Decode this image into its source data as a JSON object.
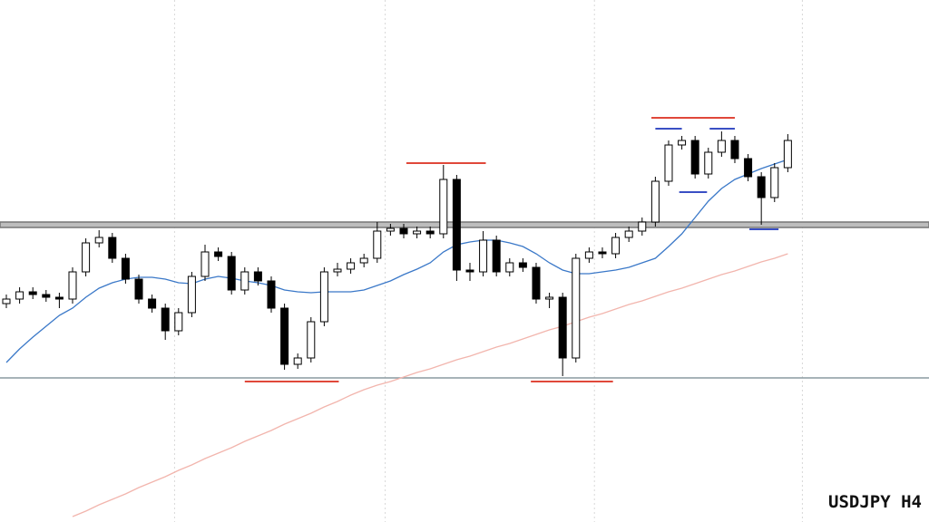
{
  "chart_data": {
    "type": "candlestick",
    "title": "USDJPY H4",
    "xlim": [
      -0.48,
      69.66
    ],
    "ylim": [
      0,
      576
    ],
    "vgrid": [
      12.7,
      28.6,
      44.4,
      60.1
    ],
    "open": [
      241,
      246,
      254,
      251,
      248,
      246,
      276,
      308,
      314,
      291,
      268,
      246,
      236,
      211,
      231,
      271,
      298,
      293,
      256,
      276,
      266,
      236,
      174,
      181,
      221,
      276,
      279,
      286,
      291,
      321,
      324,
      318,
      321,
      318,
      378,
      278,
      276,
      311,
      276,
      286,
      281,
      246,
      248,
      181,
      291,
      298,
      296,
      314,
      321,
      331,
      376,
      416,
      421,
      384,
      408,
      421,
      401,
      381,
      358,
      391
    ],
    "high": [
      251,
      259,
      259,
      256,
      253,
      281,
      313,
      322,
      319,
      296,
      273,
      251,
      241,
      236,
      276,
      306,
      303,
      298,
      281,
      281,
      271,
      241,
      186,
      226,
      281,
      286,
      291,
      296,
      331,
      329,
      329,
      326,
      326,
      394,
      383,
      286,
      321,
      316,
      291,
      291,
      286,
      253,
      253,
      296,
      303,
      303,
      319,
      326,
      336,
      381,
      421,
      426,
      426,
      413,
      431,
      426,
      406,
      386,
      396,
      428
    ],
    "low": [
      236,
      241,
      246,
      243,
      236,
      241,
      271,
      303,
      286,
      263,
      241,
      231,
      201,
      206,
      226,
      266,
      288,
      251,
      251,
      261,
      231,
      168,
      169,
      176,
      216,
      271,
      274,
      281,
      286,
      316,
      313,
      313,
      313,
      313,
      266,
      266,
      271,
      271,
      271,
      276,
      241,
      236,
      161,
      176,
      286,
      291,
      291,
      309,
      316,
      326,
      371,
      411,
      379,
      379,
      403,
      396,
      376,
      328,
      353,
      386
    ],
    "close": [
      246,
      254,
      251,
      248,
      246,
      276,
      308,
      314,
      291,
      268,
      246,
      236,
      211,
      231,
      271,
      298,
      293,
      256,
      276,
      266,
      236,
      174,
      181,
      221,
      276,
      279,
      286,
      291,
      321,
      324,
      318,
      321,
      318,
      378,
      278,
      276,
      311,
      276,
      286,
      281,
      246,
      248,
      181,
      291,
      298,
      296,
      314,
      321,
      331,
      376,
      416,
      421,
      384,
      408,
      421,
      401,
      381,
      358,
      391,
      421
    ],
    "up_color": "#ffffff",
    "down_color": "#000000",
    "series": [
      {
        "color": "#3a78c8",
        "values": [
          176,
          191,
          204,
          216,
          228,
          236,
          248,
          258,
          264,
          268,
          270,
          270,
          268,
          264,
          263,
          268,
          271,
          269,
          266,
          264,
          261,
          256,
          254,
          253,
          254,
          254,
          254,
          256,
          261,
          266,
          273,
          279,
          286,
          298,
          306,
          309,
          311,
          311,
          308,
          304,
          296,
          286,
          278,
          274,
          274,
          276,
          278,
          281,
          286,
          291,
          304,
          318,
          336,
          354,
          368,
          378,
          384,
          390,
          395,
          400
        ]
      },
      {
        "color": "#f2b5ad",
        "values": [
          null,
          null,
          null,
          null,
          null,
          6,
          12,
          19,
          25,
          31,
          38,
          44,
          50,
          57,
          63,
          70,
          76,
          82,
          89,
          95,
          101,
          108,
          114,
          120,
          127,
          133,
          140,
          146,
          151,
          155,
          160,
          165,
          169,
          174,
          179,
          183,
          188,
          193,
          197,
          202,
          207,
          212,
          216,
          221,
          226,
          230,
          235,
          240,
          244,
          249,
          254,
          258,
          263,
          268,
          273,
          277,
          282,
          287,
          291,
          296
        ]
      }
    ],
    "hlines": [
      {
        "value": 328,
        "color": "#777777",
        "width": 6
      },
      {
        "value": 159,
        "color": "#8a9aa0",
        "width": 1.5
      }
    ],
    "levels": [
      {
        "value": 446,
        "from": 48.7,
        "to": 55.0,
        "color": "#e0483a"
      },
      {
        "value": 434,
        "from": 49.0,
        "to": 51.0,
        "color": "#3a4fc4"
      },
      {
        "value": 434,
        "from": 53.1,
        "to": 55.0,
        "color": "#3a4fc4"
      },
      {
        "value": 364,
        "from": 50.8,
        "to": 52.9,
        "color": "#3a4fc4"
      },
      {
        "value": 323,
        "from": 56.1,
        "to": 58.3,
        "color": "#3a4fc4"
      },
      {
        "value": 396,
        "from": 30.2,
        "to": 36.2,
        "color": "#e0483a"
      },
      {
        "value": 155,
        "from": 18.0,
        "to": 25.1,
        "color": "#e0483a"
      },
      {
        "value": 155,
        "from": 39.6,
        "to": 45.8,
        "color": "#e0483a"
      }
    ]
  }
}
